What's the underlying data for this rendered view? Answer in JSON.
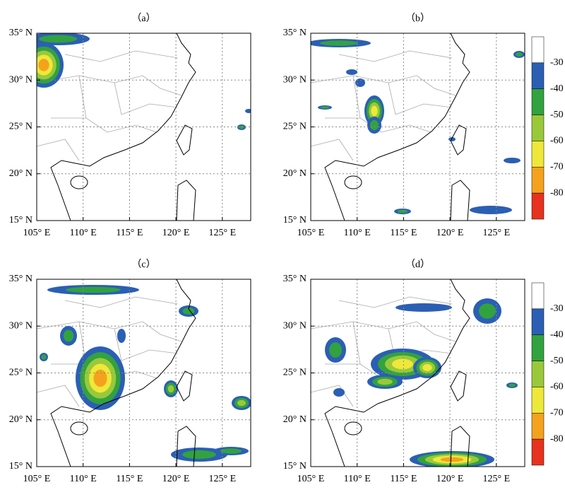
{
  "panels": [
    {
      "label": "（a）",
      "colorbar": false
    },
    {
      "label": "（b）",
      "colorbar": true
    },
    {
      "label": "（c）",
      "colorbar": false
    },
    {
      "label": "（d）",
      "colorbar": true
    }
  ],
  "x_tick_labels": [
    "105° E",
    "110° E",
    "115° E",
    "120° E",
    "125° E"
  ],
  "y_tick_labels": [
    "35° N",
    "30° N",
    "25° N",
    "20° N",
    "15° N"
  ],
  "colorbar": {
    "labels": [
      "-30",
      "-40",
      "-50",
      "-60",
      "-70",
      "-80"
    ],
    "colors": [
      "#ffffff",
      "#2b5fb4",
      "#32a23f",
      "#99c93a",
      "#eee83a",
      "#f4a21e",
      "#e6321f"
    ]
  }
}
